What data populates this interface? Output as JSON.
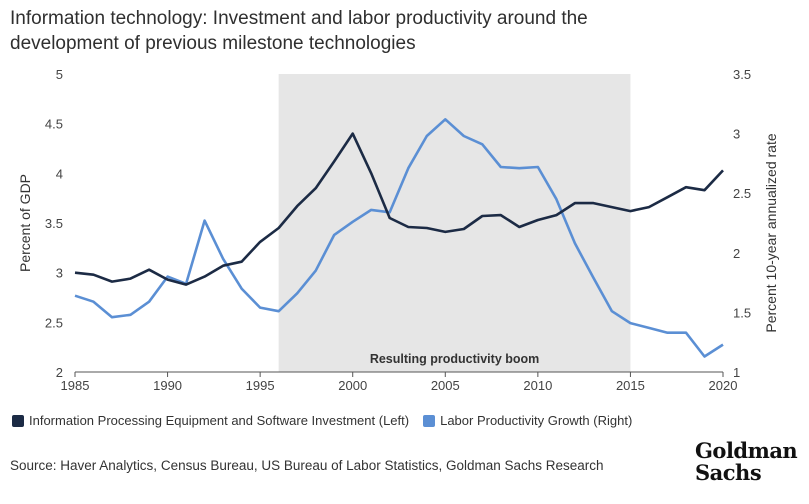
{
  "title_lines": [
    "Information technology: Investment and labor productivity around the",
    "development of previous milestone technologies"
  ],
  "source": "Source: Haver Analytics, Census Bureau, US Bureau of Labor Statistics, Goldman Sachs Research",
  "logo_lines": [
    "Goldman",
    "Sachs"
  ],
  "colors": {
    "investment": "#1c2b45",
    "productivity": "#5b8fd4",
    "shade": "#e6e6e6"
  },
  "chart_data": {
    "type": "line",
    "x_range": [
      1985,
      2020
    ],
    "x_ticks": [
      "1985",
      "1990",
      "1995",
      "2000",
      "2005",
      "2010",
      "2015",
      "2020"
    ],
    "left_axis": {
      "label": "Percent of GDP",
      "range": [
        2,
        5
      ],
      "ticks": [
        "2",
        "2.5",
        "3",
        "3.5",
        "4",
        "4.5",
        "5"
      ]
    },
    "right_axis": {
      "label": "Percent 10-year annualized rate",
      "range": [
        1,
        3.5
      ],
      "ticks": [
        "1",
        "1.5",
        "2",
        "2.5",
        "3",
        "3.5"
      ]
    },
    "shaded_region": {
      "x": [
        1996,
        2015
      ],
      "label": "Resulting productivity boom"
    },
    "legend_position": "bottom",
    "series": [
      {
        "name": "Information Processing Equipment and Software Investment (Left)",
        "axis": "left",
        "x": [
          1985,
          1986,
          1987,
          1988,
          1989,
          1990,
          1991,
          1992,
          1993,
          1994,
          1995,
          1996,
          1997,
          1998,
          1999,
          2000,
          2001,
          2002,
          2003,
          2004,
          2005,
          2006,
          2007,
          2008,
          2009,
          2010,
          2011,
          2012,
          2013,
          2014,
          2015,
          2016,
          2017,
          2018,
          2019,
          2020
        ],
        "values": [
          3.0,
          2.98,
          2.91,
          2.94,
          3.03,
          2.93,
          2.88,
          2.96,
          3.07,
          3.11,
          3.31,
          3.45,
          3.67,
          3.85,
          4.12,
          4.4,
          4.0,
          3.55,
          3.46,
          3.45,
          3.41,
          3.44,
          3.57,
          3.58,
          3.46,
          3.53,
          3.58,
          3.7,
          3.7,
          3.66,
          3.62,
          3.66,
          3.76,
          3.86,
          3.83,
          4.03
        ]
      },
      {
        "name": "Labor Productivity Growth (Right)",
        "axis": "right",
        "x": [
          1985,
          1986,
          1987,
          1988,
          1989,
          1990,
          1991,
          1992,
          1993,
          1994,
          1995,
          1996,
          1997,
          1998,
          1999,
          2000,
          2001,
          2002,
          2003,
          2004,
          2005,
          2006,
          2007,
          2008,
          2009,
          2010,
          2011,
          2012,
          2013,
          2014,
          2015,
          2016,
          2017,
          2018,
          2019,
          2020
        ],
        "values": [
          1.64,
          1.59,
          1.46,
          1.48,
          1.59,
          1.8,
          1.74,
          2.27,
          1.95,
          1.7,
          1.54,
          1.51,
          1.66,
          1.85,
          2.15,
          2.26,
          2.36,
          2.34,
          2.71,
          2.98,
          3.12,
          2.98,
          2.91,
          2.72,
          2.71,
          2.72,
          2.45,
          2.08,
          1.79,
          1.51,
          1.41,
          1.37,
          1.33,
          1.33,
          1.13,
          1.23
        ]
      }
    ]
  }
}
